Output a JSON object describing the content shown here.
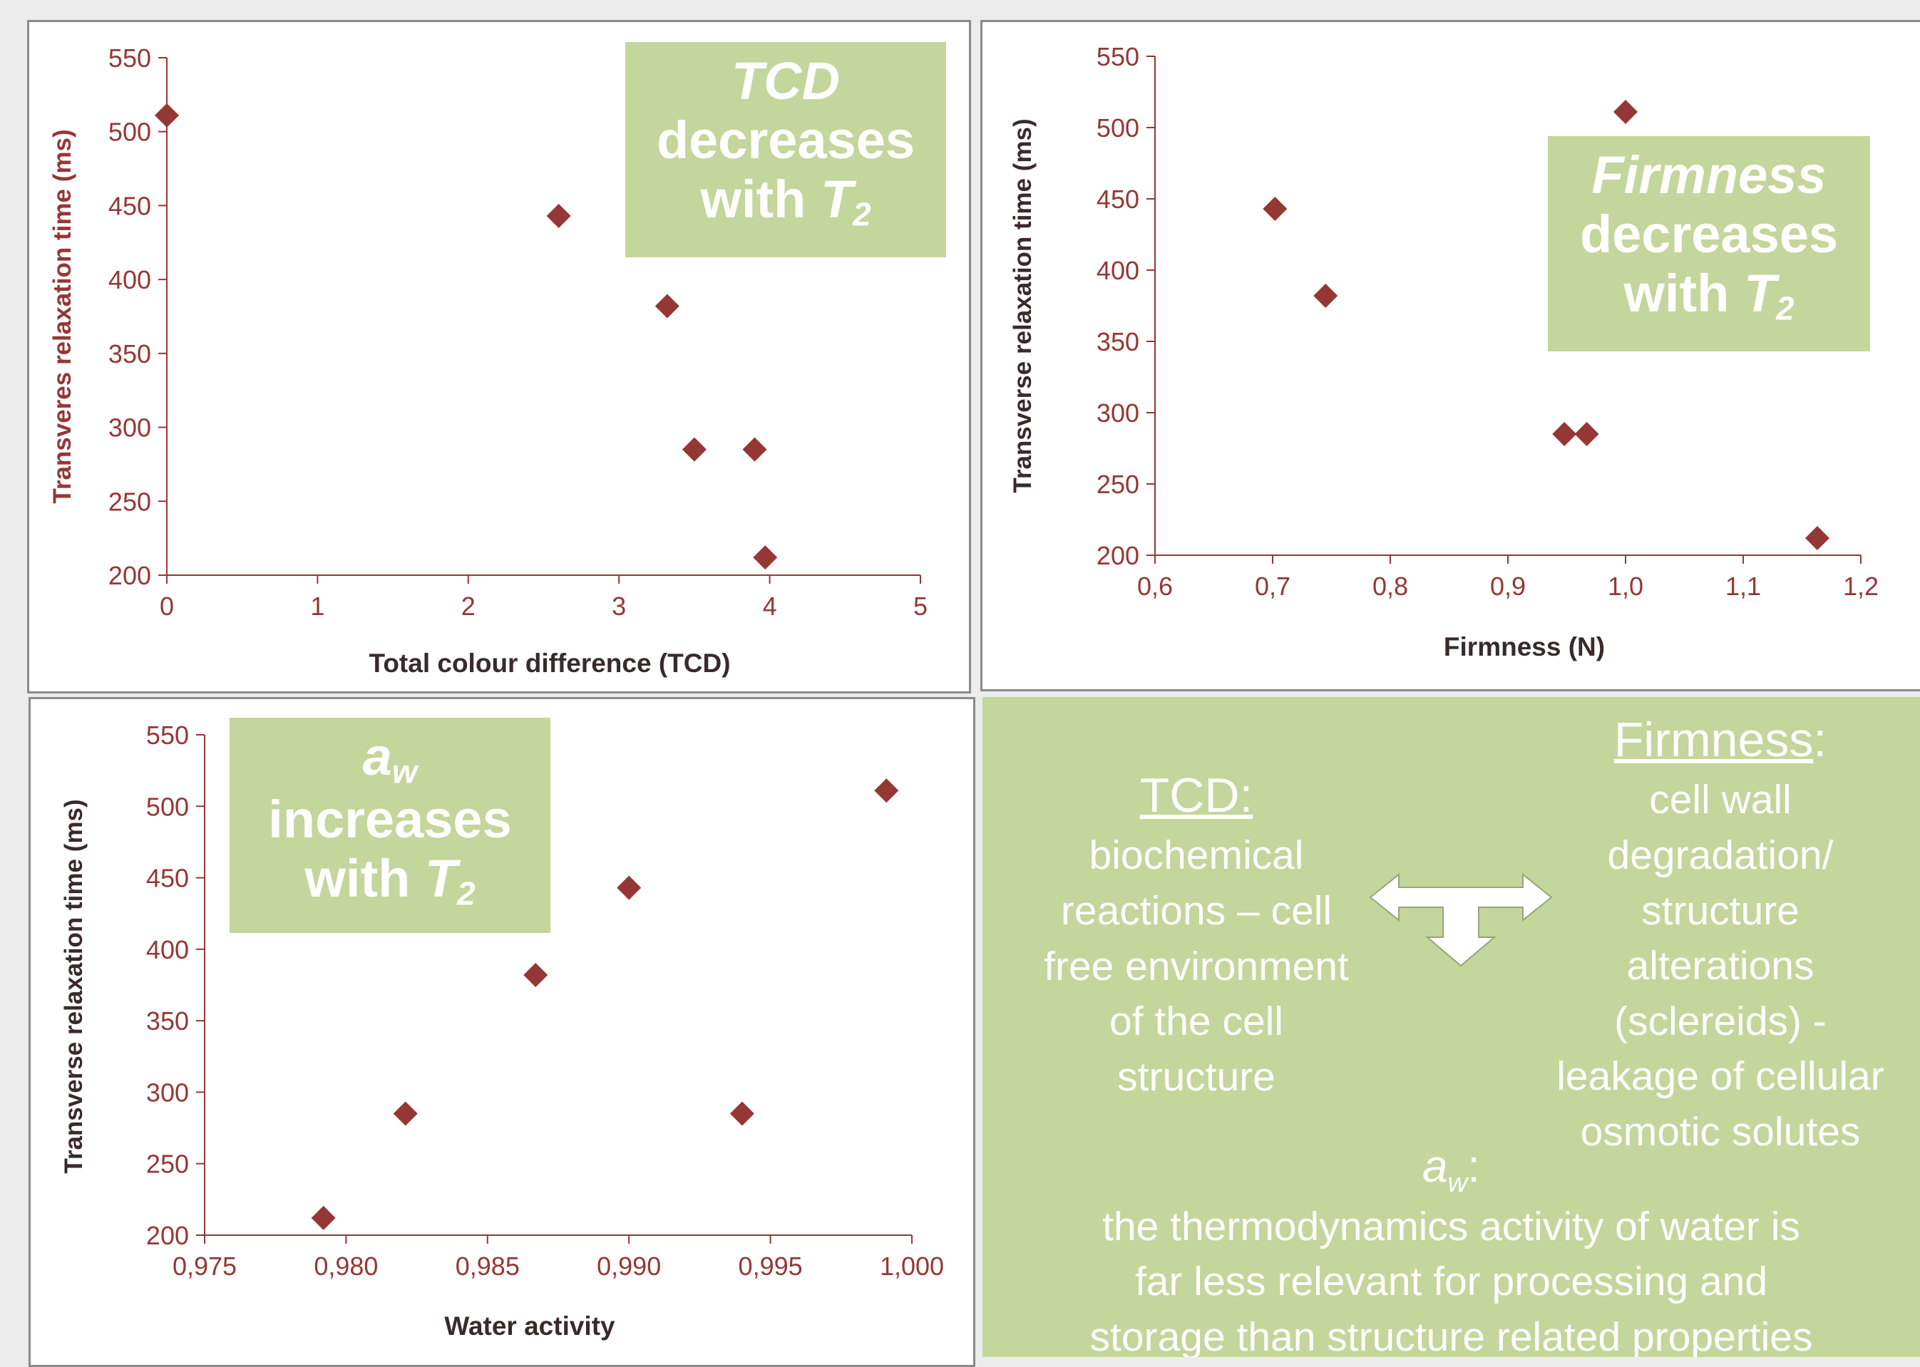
{
  "chart_data": [
    {
      "type": "scatter",
      "xlabel": "Total colour difference (TCD)",
      "ylabel": "Transveres relaxation time  (ms)",
      "xlim": [
        0,
        5
      ],
      "ylim": [
        200,
        550
      ],
      "x_ticks": [
        "0",
        "1",
        "2",
        "3",
        "4",
        "5"
      ],
      "y_ticks": [
        "200",
        "250",
        "300",
        "350",
        "400",
        "450",
        "500",
        "550"
      ],
      "points": [
        [
          0,
          511
        ],
        [
          2.6,
          443
        ],
        [
          3.32,
          382
        ],
        [
          3.5,
          285
        ],
        [
          3.9,
          285
        ],
        [
          3.97,
          212
        ]
      ],
      "marker_color": "#953735",
      "callout": {
        "line1": "TCD",
        "line2": "decreases",
        "line3": "with ",
        "symbol": "T",
        "sub": "2"
      }
    },
    {
      "type": "scatter",
      "xlabel": "Firmness (N)",
      "ylabel": "Transverse relaxation time (ms)",
      "xlim": [
        0.6,
        1.2
      ],
      "ylim": [
        200,
        550
      ],
      "x_ticks": [
        "0,6",
        "0,7",
        "0,8",
        "0,9",
        "1,0",
        "1,1",
        "1,2"
      ],
      "y_ticks": [
        "200",
        "250",
        "300",
        "350",
        "400",
        "450",
        "500",
        "550"
      ],
      "points": [
        [
          0.702,
          443
        ],
        [
          0.745,
          382
        ],
        [
          0.948,
          285
        ],
        [
          0.967,
          285
        ],
        [
          1.0,
          511
        ],
        [
          1.163,
          212
        ]
      ],
      "marker_color": "#953735",
      "callout": {
        "line1": "Firmness",
        "line2": "decreases",
        "line3": "with ",
        "symbol": "T",
        "sub": "2"
      }
    },
    {
      "type": "scatter",
      "xlabel": "Water activity",
      "ylabel": "Transverse relaxation time (ms)",
      "xlim": [
        0.975,
        1.0
      ],
      "ylim": [
        200,
        550
      ],
      "x_ticks": [
        "0,975",
        "0,980",
        "0,985",
        "0,990",
        "0,995",
        "1,000"
      ],
      "y_ticks": [
        "200",
        "250",
        "300",
        "350",
        "400",
        "450",
        "500",
        "550"
      ],
      "points": [
        [
          0.9792,
          212
        ],
        [
          0.9821,
          285
        ],
        [
          0.9867,
          382
        ],
        [
          0.99,
          443
        ],
        [
          0.994,
          285
        ],
        [
          0.9991,
          511
        ]
      ],
      "marker_color": "#953735",
      "callout": {
        "line1": "a",
        "line1_sub": "w",
        "line2": "increases",
        "line3": "with ",
        "symbol": "T",
        "sub": "2"
      }
    }
  ],
  "notes": {
    "tcd_title": "TCD:",
    "tcd_lines": [
      "biochemical",
      "reactions – cell",
      "free environment",
      "of the cell",
      "structure"
    ],
    "firm_title": "Firmness",
    "firm_colon": ":",
    "firm_lines": [
      "cell wall",
      "degradation/",
      "structure",
      "alterations",
      "(sclereids) -",
      "leakage of cellular",
      "osmotic solutes"
    ],
    "aw_title": "a",
    "aw_sub": "w",
    "aw_colon": ":",
    "aw_lines": [
      "the thermodynamics activity of water is",
      "far less relevant for processing and",
      "storage than structure related properties"
    ],
    "arrow_icon": "t-shaped-double-arrow-icon"
  }
}
